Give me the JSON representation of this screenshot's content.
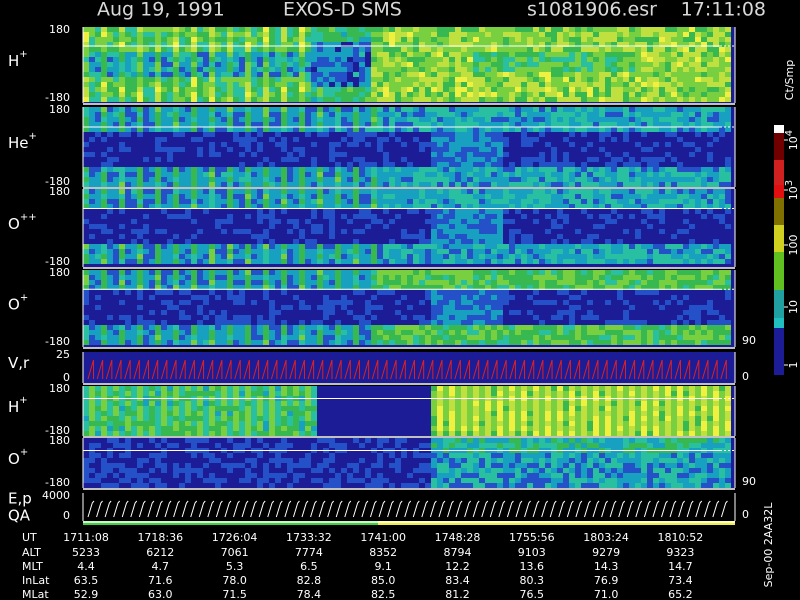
{
  "header": {
    "date": "Aug 19, 1991",
    "instrument": "EXOS-D SMS",
    "file": "s1081906.esr",
    "time": "17:11:08"
  },
  "panels": [
    {
      "ion": "H",
      "charge": "+",
      "top": "180",
      "bottom": "-180"
    },
    {
      "ion": "He",
      "charge": "+",
      "top": "180",
      "bottom": "-180"
    },
    {
      "ion": "O",
      "charge": "++",
      "top": "180",
      "bottom": "-180"
    },
    {
      "ion": "O",
      "charge": "+",
      "top": "180",
      "bottom": "-180",
      "right": "90"
    },
    {
      "label": "V,r",
      "top": "25",
      "bottom": "0",
      "right": "0"
    },
    {
      "ion": "H",
      "charge": "+",
      "top": "180",
      "bottom": "-180"
    },
    {
      "ion": "O",
      "charge": "+",
      "top": "180",
      "bottom": "-180",
      "right": "90"
    },
    {
      "label": "E,p",
      "label2": "QA",
      "top": "4000",
      "bottom": "0",
      "right": "0"
    }
  ],
  "colorbar": {
    "unit": "Ct/Smp",
    "ticks": [
      {
        "base": "10",
        "exp": "4"
      },
      {
        "base": "10",
        "exp": "3"
      },
      {
        "base": "100"
      },
      {
        "base": "10"
      },
      {
        "base": "1"
      }
    ]
  },
  "footer": {
    "rows": [
      {
        "label": "UT",
        "values": [
          "1711:08",
          "1718:36",
          "1726:04",
          "1733:32",
          "1741:00",
          "1748:28",
          "1755:56",
          "1803:24",
          "1810:52"
        ]
      },
      {
        "label": "ALT",
        "values": [
          "5233",
          "6212",
          "7061",
          "7774",
          "8352",
          "8794",
          "9103",
          "9279",
          "9323"
        ]
      },
      {
        "label": "MLT",
        "values": [
          "4.4",
          "4.7",
          "5.3",
          "6.5",
          "9.1",
          "12.2",
          "13.6",
          "14.3",
          "14.7"
        ]
      },
      {
        "label": "InLat",
        "values": [
          "63.5",
          "71.6",
          "78.0",
          "82.8",
          "85.0",
          "83.4",
          "80.3",
          "76.9",
          "73.4"
        ]
      },
      {
        "label": "MLat",
        "values": [
          "52.9",
          "63.0",
          "71.5",
          "78.4",
          "82.5",
          "81.2",
          "76.5",
          "71.0",
          "65.2"
        ]
      }
    ]
  },
  "stamp": "Sep-00 2AA32L"
}
